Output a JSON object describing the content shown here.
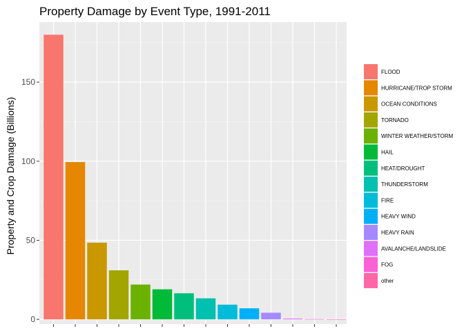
{
  "chart_data": {
    "type": "bar",
    "title": "Property Damage by Event Type, 1991-2011",
    "xlabel": "",
    "ylabel": "Property and Crop Damage (Billions)",
    "ylim": [
      -3,
      188
    ],
    "yticks": [
      0,
      50,
      100,
      150
    ],
    "grid": true,
    "legend_position": "right",
    "categories": [
      "FLOOD",
      "HURRICANE/TROP STORM",
      "OCEAN CONDITIONS",
      "TORNADO",
      "WINTER WEATHER/STORM",
      "HAIL",
      "HEAT/DROUGHT",
      "THUNDERSTORM",
      "FIRE",
      "HEAVY WIND",
      "HEAVY RAIN",
      "AVALANCHE/LANDSLIDE",
      "FOG",
      "other"
    ],
    "values": [
      180,
      99.5,
      48.5,
      31,
      22,
      19,
      16.5,
      13.3,
      9.3,
      7,
      4.2,
      0.5,
      0.15,
      0.05
    ],
    "colors": [
      "#F8766D",
      "#E58700",
      "#C99800",
      "#A3A500",
      "#6BB100",
      "#00BA38",
      "#00BF7D",
      "#00C0AF",
      "#00BCD8",
      "#00B0F6",
      "#A58AFF",
      "#DF70F8",
      "#FB61D7",
      "#FF66A8"
    ]
  }
}
